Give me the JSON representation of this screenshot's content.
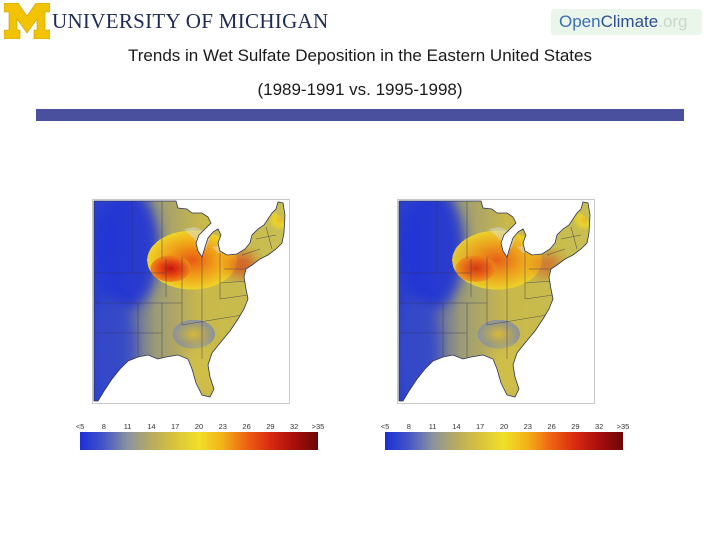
{
  "header": {
    "umich_logo_text": "UNIVERSITY OF MICHIGAN",
    "openclimate_logo": {
      "part1": "Open",
      "part2": "Climate",
      "part3": ".org"
    }
  },
  "title": {
    "line1": "Trends in Wet Sulfate Deposition in the Eastern United States",
    "line2": "(1989-1991 vs. 1995-1998)"
  },
  "colors": {
    "umich_maize": "#f2c300",
    "umich_blue": "#1f2a55",
    "rule": "#4a4f9e",
    "scale": [
      "#1a2fd6",
      "#4656c8",
      "#8a92a0",
      "#b8ab5e",
      "#d8c43a",
      "#f0e028",
      "#f3b018",
      "#ee6212",
      "#d92a10",
      "#a80e0c",
      "#6a0808"
    ]
  },
  "maps": [
    {
      "period": "1989-1991",
      "intensity": 1.0
    },
    {
      "period": "1995-1998",
      "intensity": 0.72
    }
  ],
  "colorbar": {
    "tick_labels": [
      "<5",
      "8",
      "11",
      "14",
      "17",
      "20",
      "23",
      "26",
      "29",
      "32",
      ">35"
    ]
  }
}
